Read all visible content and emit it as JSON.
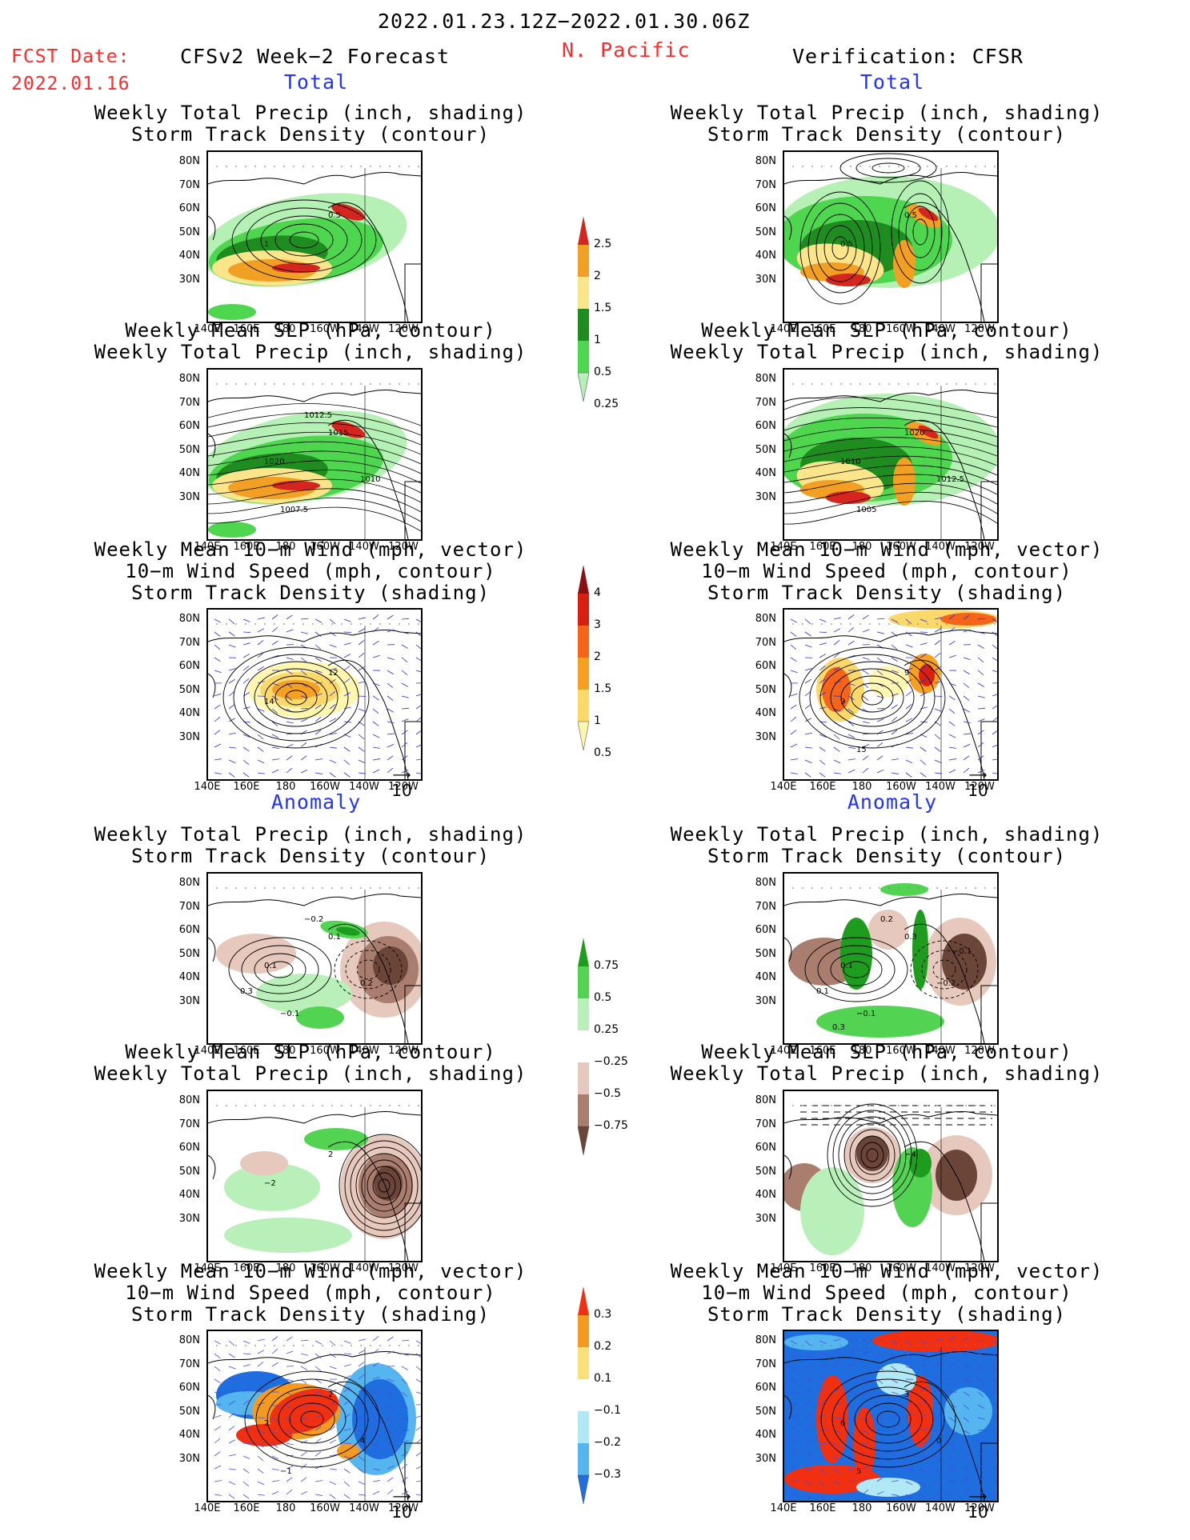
{
  "header": {
    "date_range": "2022.01.23.12Z−2022.01.30.06Z",
    "fcst_label": "FCST Date:",
    "fcst_date": "2022.01.16",
    "forecast_title": "CFSv2 Week−2 Forecast",
    "region": "N. Pacific",
    "verification": "Verification: CFSR"
  },
  "sections": {
    "total": "Total",
    "anomaly": "Anomaly"
  },
  "panel_titles": {
    "precip_storm": [
      "Weekly Total Precip (inch, shading)",
      "Storm Track Density (contour)"
    ],
    "slp_precip": [
      "Weekly Mean SLP (hPa, contour)",
      "Weekly Total Precip (inch, shading)"
    ],
    "wind_storm": [
      "Weekly Mean 10−m Wind (mph, vector)",
      "10−m Wind Speed (mph, contour)",
      "Storm Track Density (shading)"
    ]
  },
  "axes": {
    "lat_ticks": [
      "80N",
      "70N",
      "60N",
      "50N",
      "40N",
      "30N"
    ],
    "lon_ticks": [
      "140E",
      "160E",
      "180",
      "160W",
      "140W",
      "120W"
    ]
  },
  "vector_ref": "10",
  "colorbars": {
    "total_precip": {
      "labels": [
        "2.5",
        "2",
        "1.5",
        "1",
        "0.5",
        "0.25"
      ],
      "colors": [
        "#d4261e",
        "#f2a024",
        "#fbe58a",
        "#1e8c1e",
        "#4fd64f",
        "#b5f0b5"
      ]
    },
    "total_storm": {
      "labels": [
        "4",
        "3",
        "2",
        "1.5",
        "1",
        "0.5"
      ],
      "colors": [
        "#8b1010",
        "#d82010",
        "#f56418",
        "#f5a020",
        "#fbd86a",
        "#fff7b0"
      ]
    },
    "anom_precip": {
      "labels": [
        "0.75",
        "0.5",
        "0.25",
        "−0.25",
        "−0.5",
        "−0.75"
      ],
      "colors": [
        "#1e9c1e",
        "#52d452",
        "#b9f0b9",
        "#ffffff",
        "#e6c9bc",
        "#a97e6e",
        "#6b4538"
      ]
    },
    "anom_storm": {
      "labels": [
        "0.3",
        "0.2",
        "0.1",
        "−0.1",
        "−0.2",
        "−0.3"
      ],
      "colors": [
        "#f03010",
        "#f59a20",
        "#fbe07a",
        "#ffffff",
        "#b0e8f5",
        "#55b5ee",
        "#1e6ee0"
      ]
    }
  },
  "contour_labels": {
    "f_total_precip": [
      "0.5",
      "1"
    ],
    "v_total_precip": [
      "0.5",
      "0.5"
    ],
    "f_total_slp": [
      "1015",
      "1020",
      "1007.5",
      "1010",
      "1012.5"
    ],
    "v_total_slp": [
      "1020",
      "1010",
      "1005",
      "1012.5"
    ],
    "f_total_wind": [
      "12",
      "14"
    ],
    "v_total_wind": [
      "9",
      "9",
      "15"
    ],
    "f_anom_precip": [
      "0.1",
      "0.1",
      "−0.1",
      "0.2",
      "−0.2",
      "0.3"
    ],
    "v_anom_precip": [
      "0.3",
      "0.1",
      "−0.1",
      "−0.2",
      "0.2",
      "0.1",
      "−0.1",
      "0.3"
    ],
    "f_anom_slp": [
      "2",
      "−2"
    ],
    "v_anom_slp": [
      "−4"
    ],
    "f_anom_wind": [
      "2",
      "2",
      "−1",
      "4"
    ],
    "v_anom_wind": [
      "3",
      "6",
      "5",
      "0"
    ]
  }
}
